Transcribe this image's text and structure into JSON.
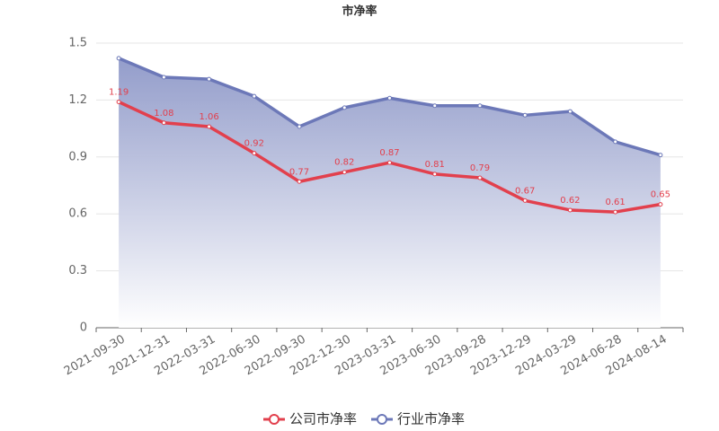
{
  "chart_data": {
    "type": "line",
    "title": "市净率",
    "categories": [
      "2021-09-30",
      "2021-12-31",
      "2022-03-31",
      "2022-06-30",
      "2022-09-30",
      "2022-12-30",
      "2023-03-31",
      "2023-06-30",
      "2023-09-28",
      "2023-12-29",
      "2024-03-29",
      "2024-06-28",
      "2024-08-14"
    ],
    "series": [
      {
        "name": "公司市净率",
        "color": "#e2404d",
        "labels": true,
        "area": false,
        "values": [
          1.19,
          1.08,
          1.06,
          0.92,
          0.77,
          0.82,
          0.87,
          0.81,
          0.79,
          0.67,
          0.62,
          0.61,
          0.65
        ]
      },
      {
        "name": "行业市净率",
        "color": "#6c78b8",
        "labels": false,
        "area": true,
        "values": [
          1.42,
          1.32,
          1.31,
          1.22,
          1.06,
          1.16,
          1.21,
          1.17,
          1.17,
          1.12,
          1.14,
          0.98,
          0.91
        ]
      }
    ],
    "ylim": [
      0,
      1.5
    ],
    "yticks": [
      0,
      0.3,
      0.6,
      0.9,
      1.2,
      1.5
    ],
    "grid": true,
    "legend": "bottom"
  }
}
